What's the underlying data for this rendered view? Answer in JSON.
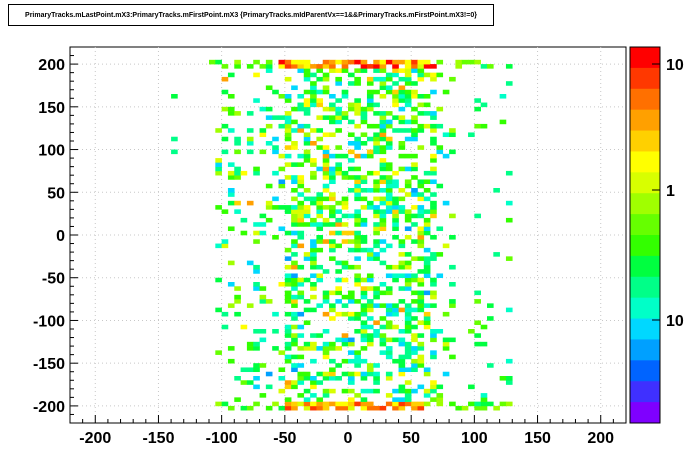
{
  "chart_data": {
    "type": "heatmap",
    "title": "PrimaryTracks.mLastPoint.mX3:PrimaryTracks.mFirstPoint.mX3 {PrimaryTracks.mIdParentVx==1&&PrimaryTracks.mFirstPoint.mX3!=0}",
    "xlabel": "",
    "ylabel": "",
    "xlim": [
      -220,
      220
    ],
    "ylim": [
      -220,
      220
    ],
    "x_ticks": [
      "-200",
      "-150",
      "-100",
      "-50",
      "0",
      "50",
      "100",
      "150",
      "200"
    ],
    "y_ticks": [
      "200",
      "150",
      "100",
      "50",
      "0",
      "-50",
      "-100",
      "-150",
      "-200"
    ],
    "grid": true,
    "log_z": true,
    "z_ticks": [
      "10",
      "1",
      "10"
    ],
    "palette": [
      "#7f00ff",
      "#3f30ff",
      "#0064ff",
      "#00a0ff",
      "#00d8ff",
      "#00ffc8",
      "#00ff88",
      "#00ff40",
      "#33ff00",
      "#66ff00",
      "#a0ff00",
      "#d8ff00",
      "#ffff00",
      "#ffd000",
      "#ffa000",
      "#ff7000",
      "#ff3800",
      "#ff0000"
    ],
    "bands": [
      {
        "name": "top",
        "y_center": 200,
        "y_half_width": 6,
        "x_range": [
          -110,
          130
        ],
        "peak_x_range": [
          -55,
          70
        ],
        "peak_z": 12
      },
      {
        "name": "bottom",
        "y_center": -200,
        "y_half_width": 6,
        "x_range": [
          -110,
          130
        ],
        "peak_x_range": [
          -50,
          60
        ],
        "peak_z": 10
      }
    ],
    "body": {
      "x_range": [
        -105,
        85
      ],
      "y_range": [
        -195,
        195
      ],
      "core_x_range": [
        -50,
        70
      ],
      "typical_z": 1.5
    },
    "sparse_strips": [
      {
        "x_range": [
          -142,
          -135
        ],
        "y_range": [
          -200,
          200
        ]
      },
      {
        "x_range": [
          95,
          130
        ],
        "y_range": [
          -200,
          200
        ]
      }
    ]
  }
}
